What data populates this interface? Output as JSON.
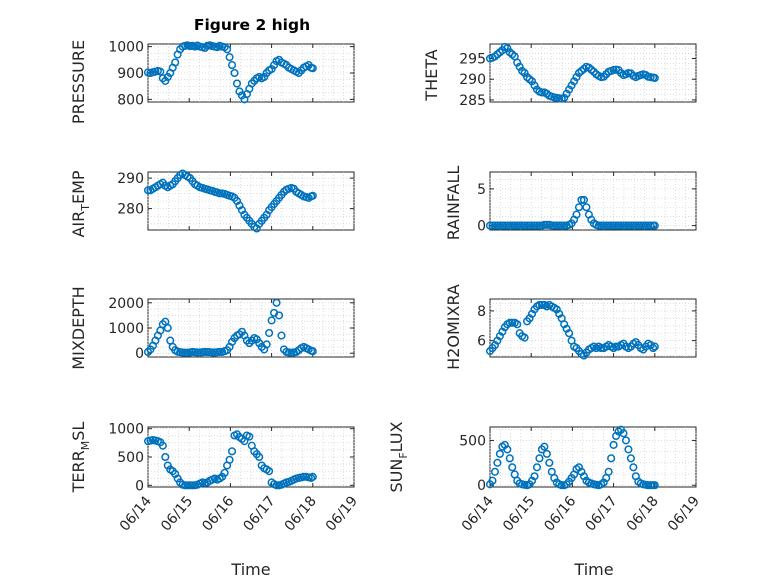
{
  "figure": {
    "title": "Figure 2 high"
  },
  "chart_data": [
    {
      "id": "pressure",
      "type": "scatter",
      "ylabel": "PRESSURE",
      "ylim": [
        790,
        1010
      ],
      "yticks": [
        800,
        900,
        1000
      ],
      "xlim": [
        0,
        5
      ],
      "xticks": [
        0,
        1,
        2,
        3,
        4,
        5
      ],
      "xticklabels": [
        "",
        "",
        "",
        "",
        "",
        ""
      ],
      "grid": true,
      "minorgrid": true,
      "title": "Figure 2 high",
      "x": [
        0,
        0.06,
        0.12,
        0.18,
        0.24,
        0.3,
        0.36,
        0.42,
        0.48,
        0.54,
        0.6,
        0.66,
        0.72,
        0.78,
        0.84,
        0.9,
        0.96,
        1.02,
        1.08,
        1.14,
        1.2,
        1.26,
        1.32,
        1.38,
        1.44,
        1.5,
        1.56,
        1.62,
        1.68,
        1.74,
        1.8,
        1.86,
        1.92,
        1.98,
        2.04,
        2.1,
        2.16,
        2.22,
        2.28,
        2.34,
        2.4,
        2.46,
        2.52,
        2.58,
        2.64,
        2.7,
        2.76,
        2.82,
        2.88,
        2.94,
        3.0,
        3.06,
        3.12,
        3.18,
        3.24,
        3.3,
        3.36,
        3.42,
        3.48,
        3.54,
        3.6,
        3.66,
        3.72,
        3.78,
        3.84,
        3.9,
        3.96,
        4.0
      ],
      "y": [
        902,
        900,
        903,
        905,
        908,
        905,
        880,
        870,
        885,
        900,
        920,
        940,
        970,
        990,
        1000,
        1003,
        1005,
        1002,
        1003,
        1000,
        1004,
        1000,
        998,
        995,
        1003,
        1005,
        1002,
        1000,
        998,
        1003,
        1000,
        998,
        990,
        960,
        930,
        900,
        860,
        830,
        815,
        800,
        820,
        840,
        860,
        870,
        880,
        885,
        880,
        885,
        900,
        910,
        915,
        930,
        945,
        950,
        940,
        935,
        930,
        920,
        915,
        910,
        905,
        900,
        910,
        920,
        925,
        930,
        920,
        918
      ]
    },
    {
      "id": "theta",
      "type": "scatter",
      "ylabel": "THETA",
      "ylim": [
        284.5,
        298.5
      ],
      "yticks": [
        285,
        290,
        295
      ],
      "xlim": [
        0,
        5
      ],
      "xticks": [
        0,
        1,
        2,
        3,
        4,
        5
      ],
      "xticklabels": [
        "",
        "",
        "",
        "",
        "",
        ""
      ],
      "grid": true,
      "minorgrid": true,
      "x": [
        0,
        0.06,
        0.12,
        0.18,
        0.24,
        0.3,
        0.36,
        0.42,
        0.48,
        0.54,
        0.6,
        0.66,
        0.72,
        0.78,
        0.84,
        0.9,
        0.96,
        1.02,
        1.08,
        1.14,
        1.2,
        1.26,
        1.32,
        1.38,
        1.44,
        1.5,
        1.56,
        1.62,
        1.68,
        1.74,
        1.8,
        1.86,
        1.92,
        1.98,
        2.04,
        2.1,
        2.16,
        2.22,
        2.28,
        2.34,
        2.4,
        2.46,
        2.52,
        2.58,
        2.64,
        2.7,
        2.76,
        2.82,
        2.88,
        2.94,
        3.0,
        3.06,
        3.12,
        3.18,
        3.24,
        3.3,
        3.36,
        3.42,
        3.48,
        3.54,
        3.6,
        3.66,
        3.72,
        3.78,
        3.84,
        3.9,
        3.96,
        4.0
      ],
      "y": [
        295,
        295.2,
        295.5,
        296,
        296.5,
        297,
        297.8,
        297.5,
        296.5,
        296,
        295.5,
        294,
        293,
        292,
        291.5,
        290.5,
        290,
        289.5,
        288.5,
        287.5,
        287,
        286.8,
        286.8,
        286.5,
        286,
        285.8,
        285.6,
        285.5,
        285.4,
        285.3,
        285.5,
        286.5,
        287.5,
        288.5,
        289.5,
        290.5,
        291.5,
        292,
        292.5,
        293,
        292.8,
        292.3,
        291.8,
        291.2,
        290.8,
        290.5,
        290.6,
        291.2,
        291.8,
        292,
        292.2,
        292.3,
        292.2,
        291.5,
        291,
        291.2,
        291.5,
        291.4,
        290.8,
        290.5,
        290.8,
        291,
        291.2,
        291,
        290.6,
        290.5,
        290.4,
        290.3
      ]
    },
    {
      "id": "airtemp",
      "type": "scatter",
      "ylabel": "AIR_TEMP",
      "ylim": [
        273,
        292
      ],
      "yticks": [
        280,
        290
      ],
      "xlim": [
        0,
        5
      ],
      "xticks": [
        0,
        1,
        2,
        3,
        4,
        5
      ],
      "xticklabels": [
        "",
        "",
        "",
        "",
        "",
        ""
      ],
      "grid": true,
      "minorgrid": true,
      "x": [
        0,
        0.06,
        0.12,
        0.18,
        0.24,
        0.3,
        0.36,
        0.42,
        0.48,
        0.54,
        0.6,
        0.66,
        0.72,
        0.78,
        0.84,
        0.9,
        0.96,
        1.02,
        1.08,
        1.14,
        1.2,
        1.26,
        1.32,
        1.38,
        1.44,
        1.5,
        1.56,
        1.62,
        1.68,
        1.74,
        1.8,
        1.86,
        1.92,
        1.98,
        2.04,
        2.1,
        2.16,
        2.22,
        2.28,
        2.34,
        2.4,
        2.46,
        2.52,
        2.58,
        2.64,
        2.7,
        2.76,
        2.82,
        2.88,
        2.94,
        3.0,
        3.06,
        3.12,
        3.18,
        3.24,
        3.3,
        3.36,
        3.42,
        3.48,
        3.54,
        3.6,
        3.66,
        3.72,
        3.78,
        3.84,
        3.9,
        3.96,
        4.0
      ],
      "y": [
        286,
        286,
        286.5,
        287,
        287.5,
        288,
        288.5,
        287.5,
        287,
        287.5,
        288,
        289,
        290,
        291,
        291.5,
        291,
        290.5,
        290,
        289,
        288,
        287.5,
        287,
        286.8,
        286.5,
        286.3,
        286,
        285.8,
        285.5,
        285.3,
        285,
        285,
        284.8,
        284.5,
        284.2,
        284,
        283.5,
        282.5,
        281,
        279.5,
        278,
        277,
        276,
        275,
        274,
        273.5,
        275,
        276,
        277,
        278,
        279.5,
        280.5,
        281.5,
        282.5,
        283.5,
        284.5,
        285.5,
        286.2,
        286.5,
        286.8,
        286.5,
        285.5,
        285,
        284.5,
        284,
        283.8,
        283.5,
        284,
        284.2
      ]
    },
    {
      "id": "rainfall",
      "type": "scatter",
      "ylabel": "RAINFALL",
      "ylim": [
        -0.6,
        7.3
      ],
      "yticks": [
        0,
        5
      ],
      "xlim": [
        0,
        5
      ],
      "xticks": [
        0,
        1,
        2,
        3,
        4,
        5
      ],
      "xticklabels": [
        "",
        "",
        "",
        "",
        "",
        ""
      ],
      "grid": true,
      "minorgrid": true,
      "x": [
        0,
        0.06,
        0.12,
        0.18,
        0.24,
        0.3,
        0.36,
        0.42,
        0.48,
        0.54,
        0.6,
        0.66,
        0.72,
        0.78,
        0.84,
        0.9,
        0.96,
        1.02,
        1.08,
        1.14,
        1.2,
        1.26,
        1.32,
        1.38,
        1.44,
        1.5,
        1.56,
        1.62,
        1.68,
        1.74,
        1.8,
        1.86,
        1.92,
        1.98,
        2.04,
        2.1,
        2.16,
        2.22,
        2.28,
        2.34,
        2.4,
        2.46,
        2.52,
        2.58,
        2.64,
        2.7,
        2.76,
        2.82,
        2.88,
        2.94,
        3.0,
        3.06,
        3.12,
        3.18,
        3.24,
        3.3,
        3.36,
        3.42,
        3.48,
        3.54,
        3.6,
        3.66,
        3.72,
        3.78,
        3.84,
        3.9,
        3.96,
        4.0
      ],
      "y": [
        0,
        0,
        0,
        0,
        0,
        0,
        0,
        0,
        0,
        0,
        0,
        0,
        0,
        0,
        0,
        0,
        0,
        0,
        0,
        0,
        0,
        0,
        0.1,
        0.1,
        0.1,
        0,
        0,
        0,
        0,
        0,
        0,
        0,
        0.1,
        0.3,
        0.8,
        1.5,
        2.5,
        3.5,
        3.5,
        2.5,
        1.5,
        0.8,
        0.3,
        0.1,
        0,
        0,
        0,
        0,
        0,
        0,
        0,
        0,
        0,
        0,
        0,
        0,
        0,
        0,
        0,
        0,
        0,
        0,
        0,
        0,
        0,
        0,
        0,
        0
      ]
    },
    {
      "id": "mixdepth",
      "type": "scatter",
      "ylabel": "MIXDEPTH",
      "ylim": [
        -150,
        2150
      ],
      "yticks": [
        0,
        1000,
        2000
      ],
      "xlim": [
        0,
        5
      ],
      "xticks": [
        0,
        1,
        2,
        3,
        4,
        5
      ],
      "xticklabels": [
        "",
        "",
        "",
        "",
        "",
        ""
      ],
      "grid": true,
      "minorgrid": true,
      "x": [
        0,
        0.06,
        0.12,
        0.18,
        0.24,
        0.3,
        0.36,
        0.42,
        0.48,
        0.54,
        0.6,
        0.66,
        0.72,
        0.78,
        0.84,
        0.9,
        0.96,
        1.02,
        1.08,
        1.14,
        1.2,
        1.26,
        1.32,
        1.38,
        1.44,
        1.5,
        1.56,
        1.62,
        1.68,
        1.74,
        1.8,
        1.86,
        1.92,
        1.98,
        2.04,
        2.1,
        2.16,
        2.22,
        2.28,
        2.34,
        2.4,
        2.46,
        2.52,
        2.58,
        2.64,
        2.7,
        2.76,
        2.82,
        2.88,
        2.94,
        3.0,
        3.06,
        3.12,
        3.18,
        3.24,
        3.3,
        3.36,
        3.42,
        3.48,
        3.54,
        3.6,
        3.66,
        3.72,
        3.78,
        3.84,
        3.9,
        3.96,
        4.0
      ],
      "y": [
        50,
        150,
        300,
        500,
        700,
        900,
        1150,
        1250,
        1000,
        500,
        250,
        120,
        60,
        40,
        30,
        20,
        20,
        30,
        50,
        40,
        30,
        30,
        40,
        50,
        50,
        40,
        30,
        30,
        40,
        50,
        50,
        80,
        120,
        250,
        450,
        600,
        700,
        750,
        850,
        700,
        500,
        400,
        500,
        600,
        550,
        400,
        250,
        150,
        350,
        800,
        1300,
        1600,
        2000,
        1500,
        700,
        150,
        50,
        30,
        20,
        30,
        50,
        120,
        200,
        250,
        200,
        150,
        100,
        80
      ]
    },
    {
      "id": "h2omixra",
      "type": "scatter",
      "ylabel": "H2OMIXRA",
      "ylim": [
        4.9,
        8.8
      ],
      "yticks": [
        6,
        8
      ],
      "xlim": [
        0,
        5
      ],
      "xticks": [
        0,
        1,
        2,
        3,
        4,
        5
      ],
      "xticklabels": [
        "",
        "",
        "",
        "",
        "",
        ""
      ],
      "grid": true,
      "minorgrid": true,
      "x": [
        0,
        0.06,
        0.12,
        0.18,
        0.24,
        0.3,
        0.36,
        0.42,
        0.48,
        0.54,
        0.6,
        0.66,
        0.72,
        0.78,
        0.84,
        0.9,
        0.96,
        1.02,
        1.08,
        1.14,
        1.2,
        1.26,
        1.32,
        1.38,
        1.44,
        1.5,
        1.56,
        1.62,
        1.68,
        1.74,
        1.8,
        1.86,
        1.92,
        1.98,
        2.04,
        2.1,
        2.16,
        2.22,
        2.28,
        2.34,
        2.4,
        2.46,
        2.52,
        2.58,
        2.64,
        2.7,
        2.76,
        2.82,
        2.88,
        2.94,
        3.0,
        3.06,
        3.12,
        3.18,
        3.24,
        3.3,
        3.36,
        3.42,
        3.48,
        3.54,
        3.6,
        3.66,
        3.72,
        3.78,
        3.84,
        3.9,
        3.96,
        4.0
      ],
      "y": [
        5.3,
        5.5,
        5.7,
        6,
        6.3,
        6.6,
        6.9,
        7.1,
        7.2,
        7.2,
        7.2,
        7.1,
        6.5,
        6.3,
        6.2,
        7.3,
        7.5,
        7.8,
        8.1,
        8.3,
        8.4,
        8.4,
        8.4,
        8.3,
        8.4,
        8.3,
        8.2,
        8.1,
        7.8,
        7.5,
        7.1,
        6.8,
        6.5,
        6,
        5.6,
        5.5,
        5.3,
        5.1,
        5.0,
        5.2,
        5.4,
        5.5,
        5.6,
        5.5,
        5.6,
        5.5,
        5.5,
        5.6,
        5.7,
        5.6,
        5.5,
        5.6,
        5.6,
        5.7,
        5.8,
        5.6,
        5.5,
        5.6,
        5.8,
        5.9,
        5.7,
        5.5,
        5.4,
        5.6,
        5.8,
        5.7,
        5.5,
        5.6
      ]
    },
    {
      "id": "terrmsl",
      "type": "scatter",
      "ylabel": "TERR_MSL",
      "ylim": [
        -30,
        1030
      ],
      "yticks": [
        0,
        500,
        1000
      ],
      "xlim": [
        0,
        5
      ],
      "xticks": [
        0,
        1,
        2,
        3,
        4,
        5
      ],
      "xticklabels": [
        "06/14",
        "06/15",
        "06/16",
        "06/17",
        "06/18",
        "06/19"
      ],
      "grid": true,
      "minorgrid": true,
      "x": [
        0,
        0.06,
        0.12,
        0.18,
        0.24,
        0.3,
        0.36,
        0.42,
        0.48,
        0.54,
        0.6,
        0.66,
        0.72,
        0.78,
        0.84,
        0.9,
        0.96,
        1.02,
        1.08,
        1.14,
        1.2,
        1.26,
        1.32,
        1.38,
        1.44,
        1.5,
        1.56,
        1.62,
        1.68,
        1.74,
        1.8,
        1.86,
        1.92,
        1.98,
        2.04,
        2.1,
        2.16,
        2.22,
        2.28,
        2.34,
        2.4,
        2.46,
        2.52,
        2.58,
        2.64,
        2.7,
        2.76,
        2.82,
        2.88,
        2.94,
        3.0,
        3.06,
        3.12,
        3.18,
        3.24,
        3.3,
        3.36,
        3.42,
        3.48,
        3.54,
        3.6,
        3.66,
        3.72,
        3.78,
        3.84,
        3.9,
        3.96,
        4.0
      ],
      "y": [
        780,
        790,
        800,
        790,
        780,
        760,
        700,
        500,
        350,
        280,
        250,
        200,
        120,
        50,
        10,
        0,
        0,
        0,
        0,
        0,
        10,
        30,
        50,
        40,
        50,
        80,
        100,
        120,
        100,
        120,
        150,
        220,
        350,
        450,
        600,
        880,
        900,
        850,
        820,
        780,
        880,
        860,
        700,
        600,
        550,
        500,
        350,
        300,
        280,
        250,
        50,
        20,
        0,
        0,
        10,
        30,
        50,
        60,
        80,
        100,
        120,
        130,
        140,
        150,
        150,
        140,
        130,
        150
      ]
    },
    {
      "id": "sunflux",
      "type": "scatter",
      "ylabel": "SUN_FLUX",
      "ylim": [
        -20,
        650
      ],
      "yticks": [
        0,
        500
      ],
      "xlim": [
        0,
        5
      ],
      "xticks": [
        0,
        1,
        2,
        3,
        4,
        5
      ],
      "xticklabels": [
        "06/14",
        "06/15",
        "06/16",
        "06/17",
        "06/18",
        "06/19"
      ],
      "grid": true,
      "minorgrid": true,
      "x": [
        0,
        0.06,
        0.12,
        0.18,
        0.24,
        0.3,
        0.36,
        0.42,
        0.48,
        0.54,
        0.6,
        0.66,
        0.72,
        0.78,
        0.84,
        0.9,
        0.96,
        1.02,
        1.08,
        1.14,
        1.2,
        1.26,
        1.32,
        1.38,
        1.44,
        1.5,
        1.56,
        1.62,
        1.68,
        1.74,
        1.8,
        1.86,
        1.92,
        1.98,
        2.04,
        2.1,
        2.16,
        2.22,
        2.28,
        2.34,
        2.4,
        2.46,
        2.52,
        2.58,
        2.64,
        2.7,
        2.76,
        2.82,
        2.88,
        2.94,
        3.0,
        3.06,
        3.12,
        3.18,
        3.24,
        3.3,
        3.36,
        3.42,
        3.48,
        3.54,
        3.6,
        3.66,
        3.72,
        3.78,
        3.84,
        3.9,
        3.96,
        4.0
      ],
      "y": [
        10,
        50,
        150,
        250,
        350,
        430,
        450,
        400,
        300,
        200,
        120,
        50,
        20,
        10,
        5,
        0,
        10,
        50,
        100,
        200,
        300,
        400,
        430,
        350,
        250,
        150,
        80,
        30,
        10,
        0,
        0,
        10,
        40,
        80,
        120,
        180,
        200,
        150,
        100,
        50,
        30,
        20,
        10,
        5,
        0,
        10,
        30,
        80,
        150,
        300,
        450,
        550,
        600,
        620,
        580,
        500,
        400,
        300,
        200,
        100,
        40,
        20,
        10,
        5,
        0,
        0,
        0,
        0
      ]
    }
  ],
  "axes_text": {
    "left_xlabel": "Time",
    "right_xlabel": "Time",
    "pressure_ylabel": "PRESSURE",
    "theta_ylabel": "THETA",
    "airtemp_ylabel_main": "AIR",
    "airtemp_ylabel_sub": "T",
    "airtemp_ylabel_rest": "EMP",
    "rainfall_ylabel": "RAINFALL",
    "mixdepth_ylabel": "MIXDEPTH",
    "h2omixra_ylabel": "H2OMIXRA",
    "terrmsl_ylabel_main": "TERR",
    "terrmsl_ylabel_sub": "M",
    "terrmsl_ylabel_rest": "SL",
    "sunflux_ylabel_main": "SUN",
    "sunflux_ylabel_sub": "F",
    "sunflux_ylabel_rest": "LUX"
  },
  "colors": {
    "marker": "#0072BD",
    "axis": "#262626",
    "grid": "#c7c7c7"
  }
}
